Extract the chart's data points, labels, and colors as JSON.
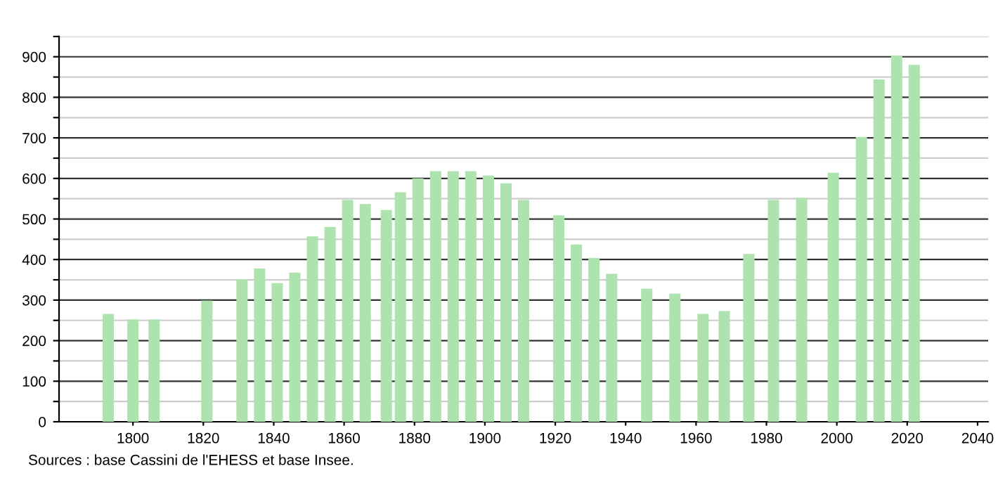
{
  "chart_data": {
    "type": "bar",
    "x": [
      1793,
      1800,
      1806,
      1821,
      1831,
      1836,
      1841,
      1846,
      1851,
      1856,
      1861,
      1866,
      1872,
      1876,
      1881,
      1886,
      1891,
      1896,
      1901,
      1906,
      1911,
      1921,
      1926,
      1931,
      1936,
      1946,
      1954,
      1962,
      1968,
      1975,
      1982,
      1990,
      1999,
      2007,
      2012,
      2017,
      2022
    ],
    "values": [
      266,
      252,
      252,
      299,
      352,
      378,
      342,
      368,
      457,
      480,
      547,
      537,
      522,
      566,
      600,
      618,
      618,
      618,
      607,
      588,
      547,
      509,
      437,
      404,
      365,
      328,
      316,
      266,
      273,
      414,
      547,
      552,
      614,
      702,
      844,
      903,
      880
    ],
    "color": "#aee2ae",
    "xlim": [
      1779,
      2043
    ],
    "xticks": [
      1800,
      1820,
      1840,
      1860,
      1880,
      1900,
      1920,
      1940,
      1960,
      1980,
      2000,
      2020,
      2040
    ],
    "ylim": [
      0,
      950
    ],
    "yticks": [
      0,
      {
        "value": 50,
        "label": null
      },
      100,
      {
        "value": 150,
        "label": null
      },
      200,
      {
        "value": 250,
        "label": null
      },
      300,
      {
        "value": 350,
        "label": null
      },
      400,
      {
        "value": 450,
        "label": null
      },
      500,
      {
        "value": 550,
        "label": null
      },
      600,
      {
        "value": 650,
        "label": null
      },
      700,
      {
        "value": 750,
        "label": null
      },
      800,
      {
        "value": 850,
        "label": null
      },
      900,
      {
        "value": 950,
        "label": null
      }
    ],
    "grid": "y",
    "annotations": [
      "Sources : base Cassini de l'EHESS et base Insee."
    ]
  }
}
